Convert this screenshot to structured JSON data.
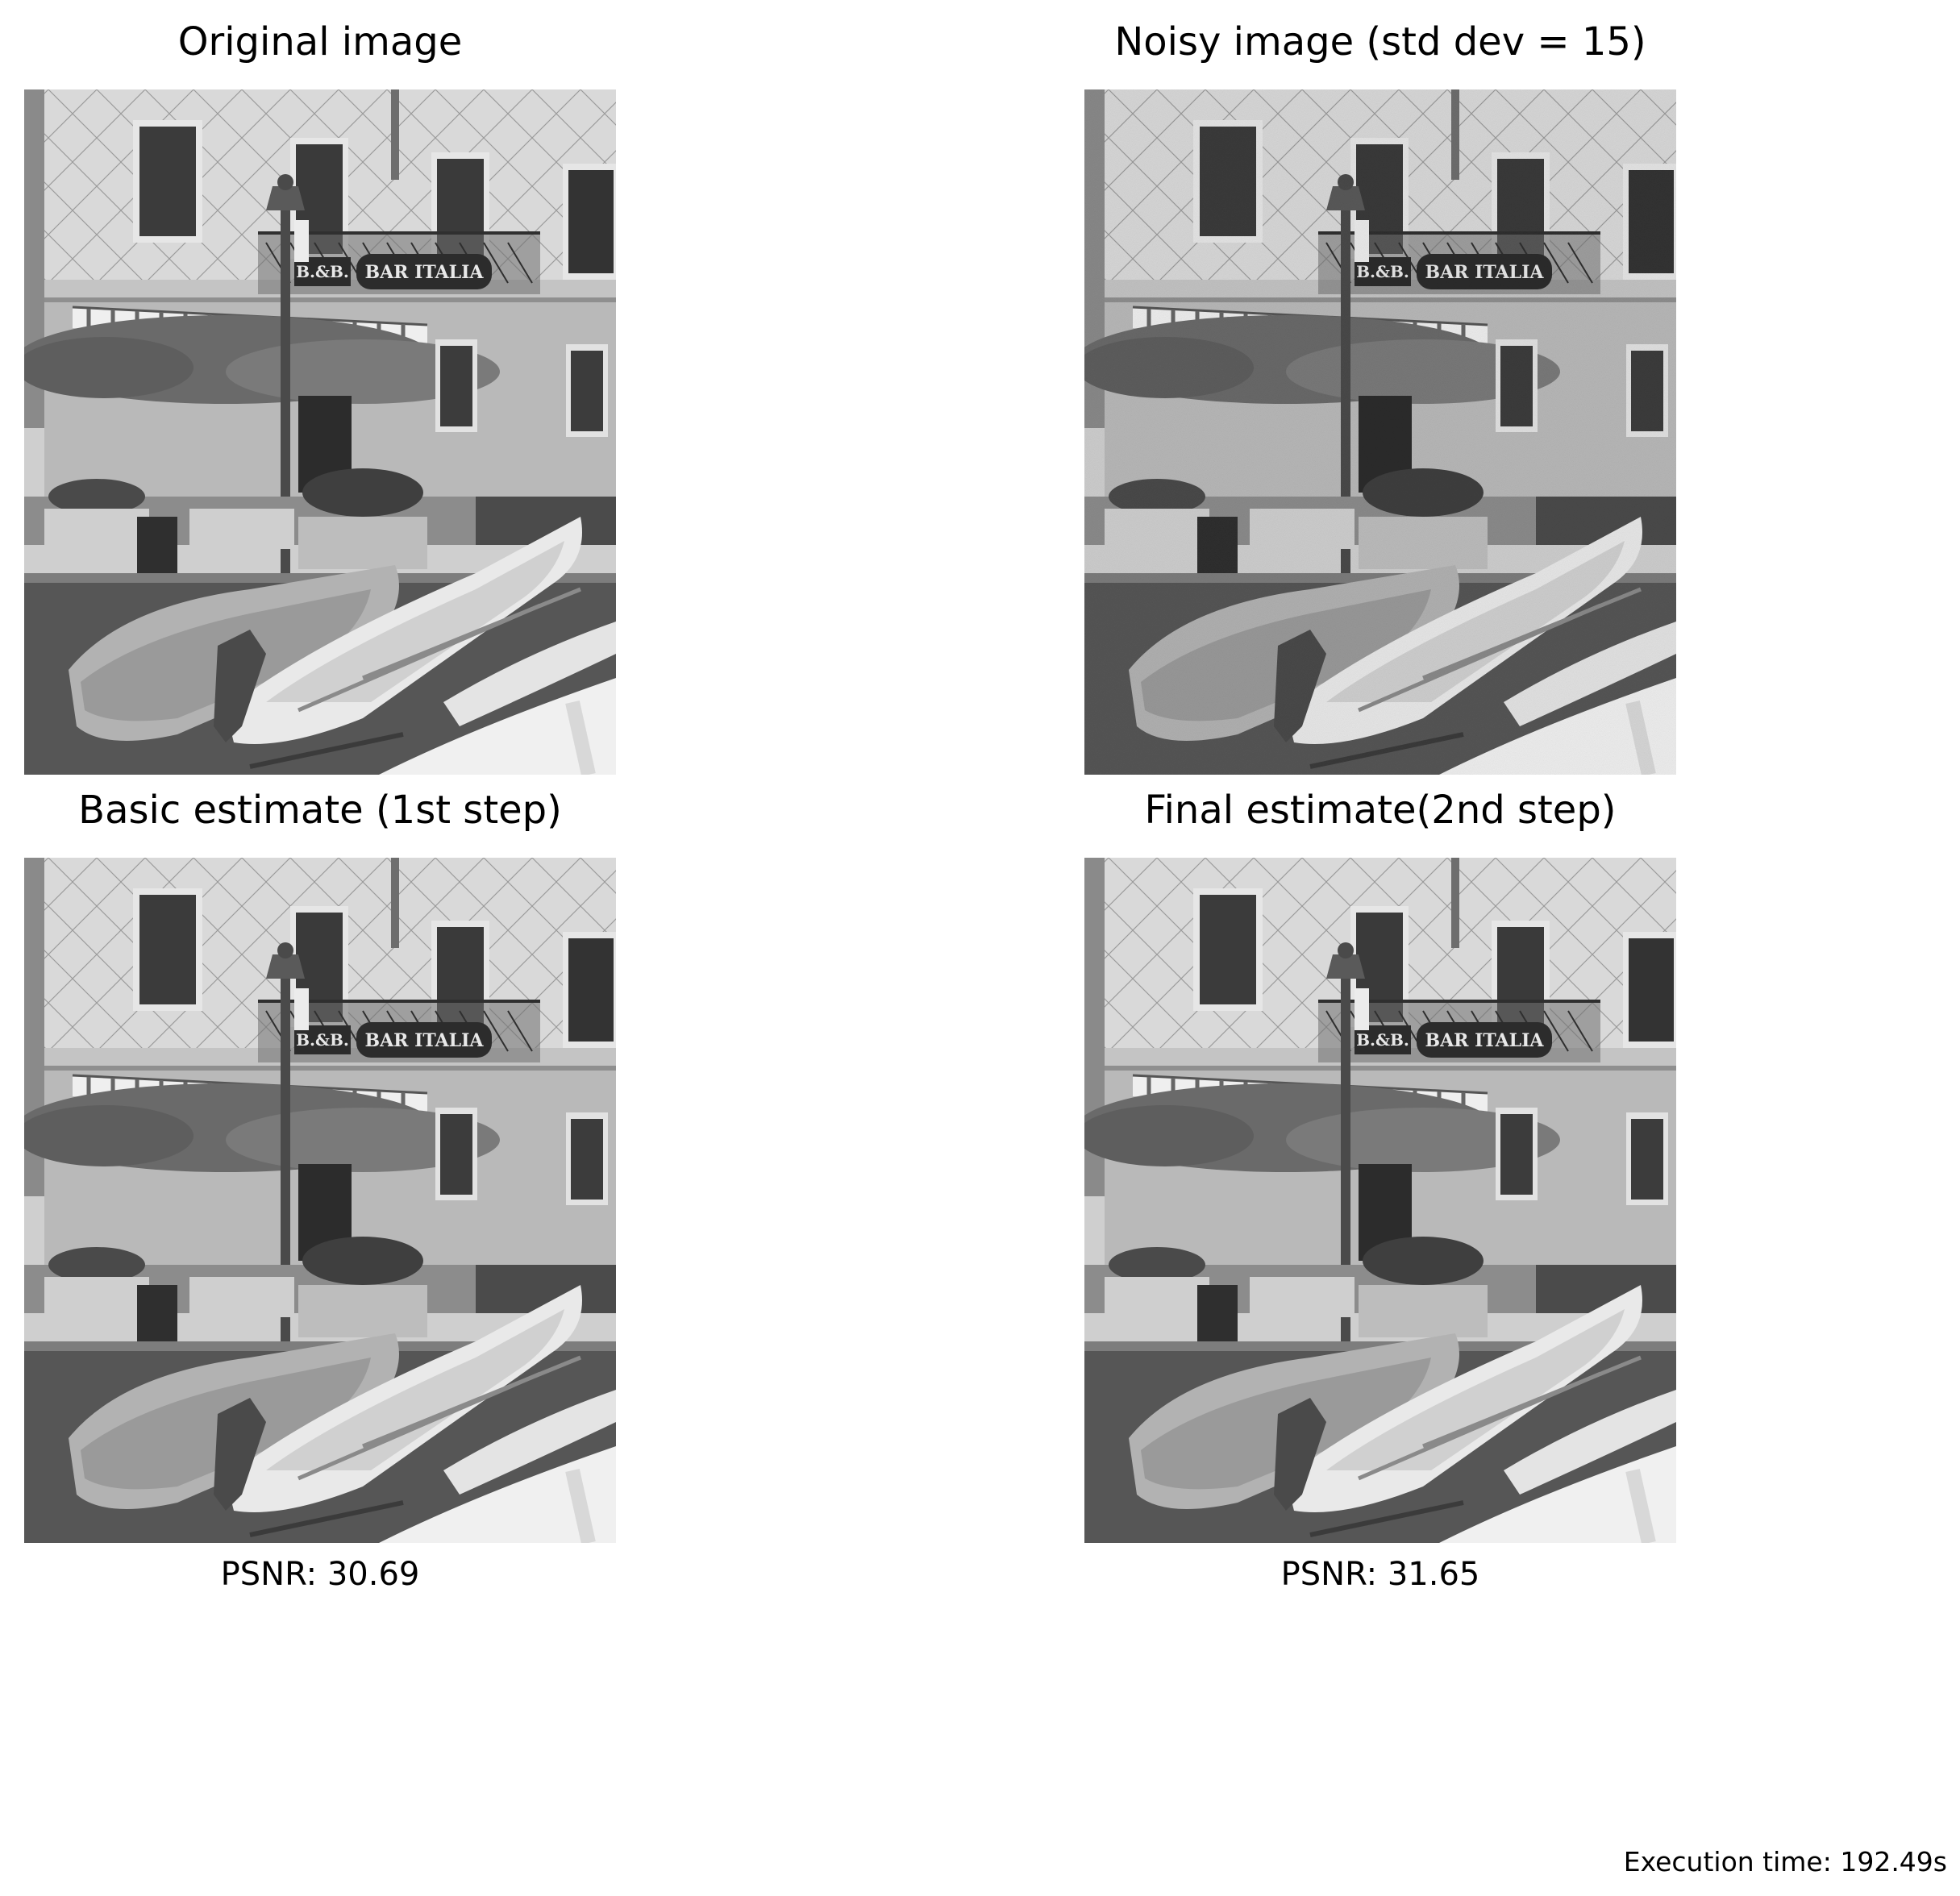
{
  "figure": {
    "panels": [
      {
        "title": "Original image",
        "caption": "",
        "noisy": false
      },
      {
        "title": "Noisy image (std dev = 15)",
        "caption": "",
        "noisy": true
      },
      {
        "title": "Basic estimate (1st step)",
        "caption": "PSNR: 30.69",
        "noisy": false
      },
      {
        "title": "Final estimate(2nd step)",
        "caption": "PSNR: 31.65",
        "noisy": false
      }
    ],
    "sign_bb": "B.&B.",
    "sign_bar": "BAR ITALIA",
    "execution_time": "Execution time: 192.49s"
  }
}
